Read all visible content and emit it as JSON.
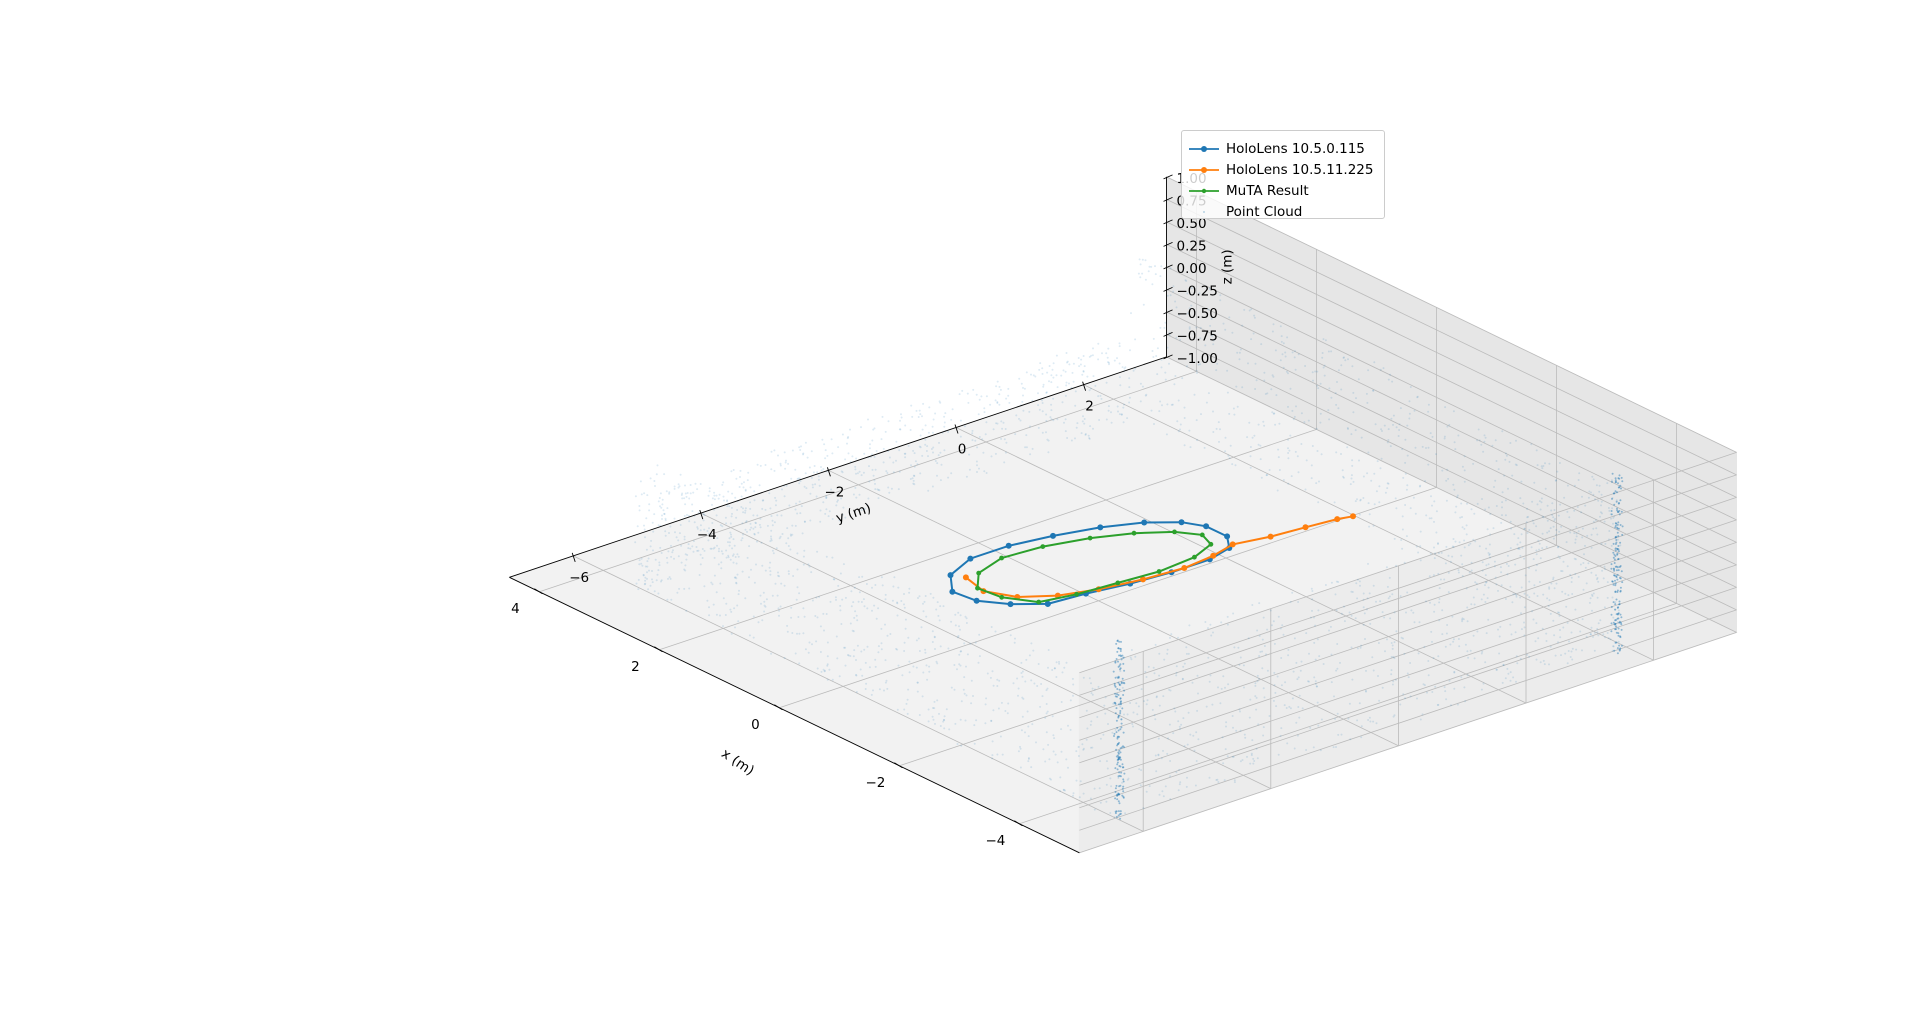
{
  "chart_data": {
    "type": "scatter",
    "projection": "3d",
    "xlabel": "x (m)",
    "ylabel": "y (m)",
    "zlabel": "z (m)",
    "xlim": [
      -5,
      4.5
    ],
    "ylim": [
      -7,
      3.3
    ],
    "zlim": [
      -1.0,
      1.0
    ],
    "xticks": [
      -4,
      -2,
      0,
      2,
      4
    ],
    "yticks": [
      -6,
      -4,
      -2,
      0,
      2
    ],
    "zticks": [
      -1.0,
      -0.75,
      -0.5,
      -0.25,
      0.0,
      0.25,
      0.5,
      0.75,
      1.0
    ],
    "x_tick_labels": [
      "−4",
      "−2",
      "0",
      "2",
      "4"
    ],
    "y_tick_labels": [
      "−6",
      "−4",
      "−2",
      "0",
      "2"
    ],
    "z_tick_labels": [
      "−1.00",
      "−0.75",
      "−0.50",
      "−0.25",
      "0.00",
      "0.25",
      "0.50",
      "0.75",
      "1.00"
    ],
    "grid": true,
    "legend_position": "top-right",
    "series": [
      {
        "name": "HoloLens 10.5.0.115",
        "kind": "line-marker",
        "color": "#1f77b4",
        "points": [
          [
            -1.55,
            -4.25,
            0
          ],
          [
            -1.6,
            -3.7,
            0
          ],
          [
            -1.7,
            -3.1,
            0
          ],
          [
            -1.75,
            -2.5,
            0
          ],
          [
            -1.75,
            -1.9,
            0
          ],
          [
            -1.65,
            -1.5,
            0
          ],
          [
            -1.4,
            -1.3,
            0
          ],
          [
            -1.05,
            -1.3,
            0
          ],
          [
            -0.8,
            -1.45,
            0
          ],
          [
            -0.55,
            -1.8,
            0
          ],
          [
            -0.35,
            -2.3,
            0
          ],
          [
            -0.2,
            -2.9,
            0
          ],
          [
            -0.1,
            -3.5,
            0
          ],
          [
            -0.1,
            -4.1,
            0
          ],
          [
            -0.3,
            -4.6,
            0
          ],
          [
            -0.65,
            -4.9,
            0
          ],
          [
            -1.0,
            -4.85,
            0
          ],
          [
            -1.3,
            -4.6,
            0
          ],
          [
            -1.55,
            -4.25,
            0
          ]
        ]
      },
      {
        "name": "HoloLens 10.5.11.225",
        "kind": "line-marker",
        "color": "#ff7f0e",
        "points": [
          [
            -0.45,
            -4.5,
            0
          ],
          [
            -0.85,
            -4.6,
            0
          ],
          [
            -1.2,
            -4.4,
            0
          ],
          [
            -1.45,
            -4.0,
            0
          ],
          [
            -1.6,
            -3.5,
            0
          ],
          [
            -1.7,
            -2.9,
            0
          ],
          [
            -1.75,
            -2.3,
            0
          ],
          [
            -1.7,
            -1.8,
            0
          ],
          [
            -1.6,
            -1.4,
            0
          ],
          [
            -1.7,
            -0.9,
            0
          ],
          [
            -1.75,
            -0.4,
            0
          ],
          [
            -1.8,
            0.05,
            0
          ],
          [
            -1.85,
            0.25,
            0
          ]
        ]
      },
      {
        "name": "MuTA Result",
        "kind": "line-marker",
        "color": "#2ca02c",
        "points": [
          [
            -1.45,
            -4.3,
            0
          ],
          [
            -1.55,
            -3.8,
            0
          ],
          [
            -1.6,
            -3.2,
            0
          ],
          [
            -1.65,
            -2.6,
            0
          ],
          [
            -1.6,
            -2.0,
            0
          ],
          [
            -1.45,
            -1.6,
            0
          ],
          [
            -1.2,
            -1.5,
            0
          ],
          [
            -0.95,
            -1.7,
            0
          ],
          [
            -0.7,
            -2.1,
            0
          ],
          [
            -0.5,
            -2.6,
            0
          ],
          [
            -0.35,
            -3.2,
            0
          ],
          [
            -0.3,
            -3.8,
            0
          ],
          [
            -0.45,
            -4.3,
            0
          ],
          [
            -0.75,
            -4.6,
            0
          ],
          [
            -1.1,
            -4.55,
            0
          ],
          [
            -1.45,
            -4.3,
            0
          ]
        ]
      },
      {
        "name": "Point Cloud",
        "kind": "scatter",
        "color": "#1f77b4",
        "marker_size": 1,
        "alpha": 0.15,
        "walls": [
          {
            "from": [
              -4.6,
              -6.0
            ],
            "to": [
              -4.6,
              1.8
            ],
            "zrange": [
              -1.0,
              0.9
            ]
          },
          {
            "from": [
              -4.6,
              1.8
            ],
            "to": [
              3.4,
              1.8
            ],
            "zrange": [
              -1.0,
              0.9
            ]
          },
          {
            "from": [
              3.4,
              -6.0
            ],
            "to": [
              3.4,
              1.8
            ],
            "zrange": [
              -1.0,
              0.0
            ]
          },
          {
            "from": [
              -4.6,
              -6.0
            ],
            "to": [
              3.4,
              -6.0
            ],
            "zrange": [
              -1.0,
              0.5
            ]
          }
        ],
        "columns": [
          [
            -4.6,
            -6.0
          ],
          [
            -4.6,
            1.8
          ]
        ]
      }
    ]
  }
}
